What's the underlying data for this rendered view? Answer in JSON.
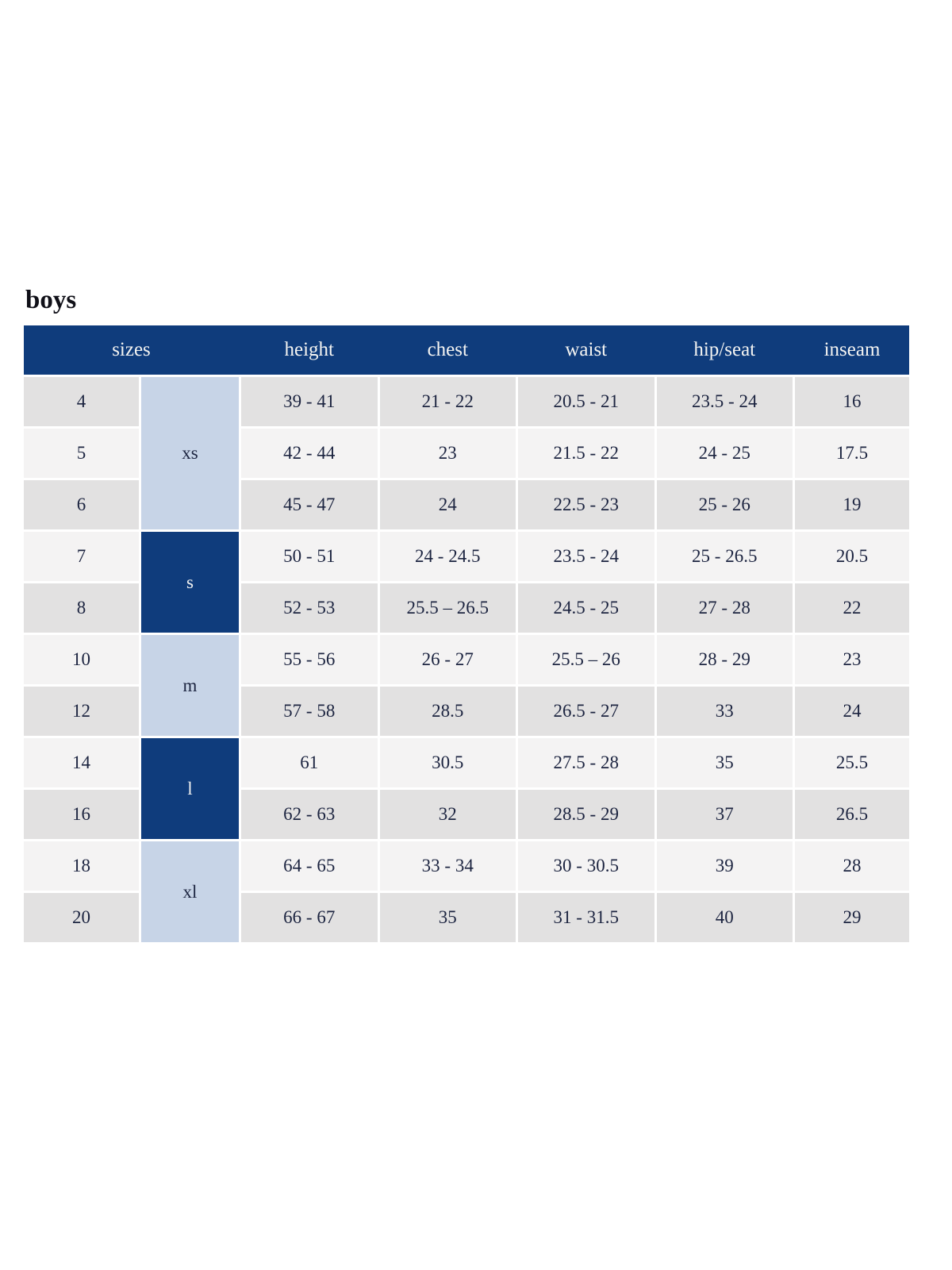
{
  "page_title": "boys",
  "colors": {
    "header_navy": "#0f3c7c",
    "group_light_blue": "#c7d4e7",
    "row_gray": "#e2e1e1",
    "row_light": "#f4f3f3",
    "header_text": "#f4f4f2",
    "body_text": "#1c2440"
  },
  "table": {
    "headers": {
      "sizes": "sizes",
      "height": "height",
      "chest": "chest",
      "waist": "waist",
      "hip_seat": "hip/seat",
      "inseam": "inseam"
    },
    "groups": [
      {
        "label": "xs",
        "span": 3,
        "style": "light"
      },
      {
        "label": "s",
        "span": 2,
        "style": "dark"
      },
      {
        "label": "m",
        "span": 2,
        "style": "light"
      },
      {
        "label": "l",
        "span": 2,
        "style": "dark"
      },
      {
        "label": "xl",
        "span": 2,
        "style": "light"
      }
    ],
    "rows": [
      {
        "size": "4",
        "height": "39 - 41",
        "chest": "21 - 22",
        "waist": "20.5 - 21",
        "hip_seat": "23.5 - 24",
        "inseam": "16"
      },
      {
        "size": "5",
        "height": "42 - 44",
        "chest": "23",
        "waist": "21.5 - 22",
        "hip_seat": "24 - 25",
        "inseam": "17.5"
      },
      {
        "size": "6",
        "height": "45 - 47",
        "chest": "24",
        "waist": "22.5 - 23",
        "hip_seat": "25 - 26",
        "inseam": "19"
      },
      {
        "size": "7",
        "height": "50 - 51",
        "chest": "24 - 24.5",
        "waist": "23.5 - 24",
        "hip_seat": "25 - 26.5",
        "inseam": "20.5"
      },
      {
        "size": "8",
        "height": "52 - 53",
        "chest": "25.5 – 26.5",
        "waist": "24.5 - 25",
        "hip_seat": "27 - 28",
        "inseam": "22"
      },
      {
        "size": "10",
        "height": "55 - 56",
        "chest": "26 - 27",
        "waist": "25.5 – 26",
        "hip_seat": "28 - 29",
        "inseam": "23"
      },
      {
        "size": "12",
        "height": "57 - 58",
        "chest": "28.5",
        "waist": "26.5 - 27",
        "hip_seat": "33",
        "inseam": "24"
      },
      {
        "size": "14",
        "height": "61",
        "chest": "30.5",
        "waist": "27.5 - 28",
        "hip_seat": "35",
        "inseam": "25.5"
      },
      {
        "size": "16",
        "height": "62 - 63",
        "chest": "32",
        "waist": "28.5 - 29",
        "hip_seat": "37",
        "inseam": "26.5"
      },
      {
        "size": "18",
        "height": "64 - 65",
        "chest": "33 - 34",
        "waist": "30 - 30.5",
        "hip_seat": "39",
        "inseam": "28"
      },
      {
        "size": "20",
        "height": "66 - 67",
        "chest": "35",
        "waist": "31 - 31.5",
        "hip_seat": "40",
        "inseam": "29"
      }
    ]
  }
}
